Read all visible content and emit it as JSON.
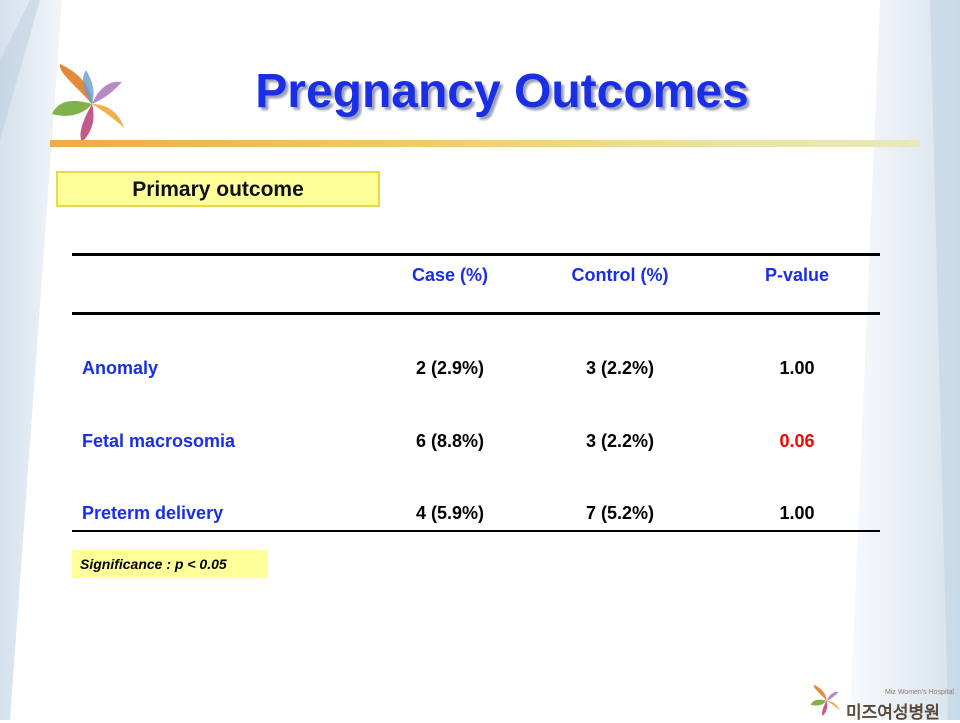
{
  "slide": {
    "title": "Pregnancy Outcomes",
    "section_label": "Primary outcome",
    "table": {
      "headers": [
        "",
        "Case (%)",
        "Control (%)",
        "P-value"
      ],
      "rows": [
        {
          "label": "Anomaly",
          "case": "2 (2.9%)",
          "control": "3 (2.2%)",
          "p_value": "1.00",
          "highlight": false
        },
        {
          "label": "Fetal macrosomia",
          "case": "6 (8.8%)",
          "control": "3 (2.2%)",
          "p_value": "0.06",
          "highlight": true
        },
        {
          "label": "Preterm delivery",
          "case": "4 (5.9%)",
          "control": "7 (5.2%)",
          "p_value": "1.00",
          "highlight": false
        }
      ]
    },
    "note": "Significance : p < 0.05"
  },
  "brand": {
    "name": "미즈여성병원",
    "subtitle": "Miz Women's Hospital",
    "logo": "leaf-logo-icon"
  },
  "colors": {
    "title": "#1a2ee6",
    "label_box": "#ffff99",
    "highlight": "#ff0000",
    "rule_gradient_start": "#f0a84a",
    "rule_gradient_end": "#e8eab8"
  }
}
